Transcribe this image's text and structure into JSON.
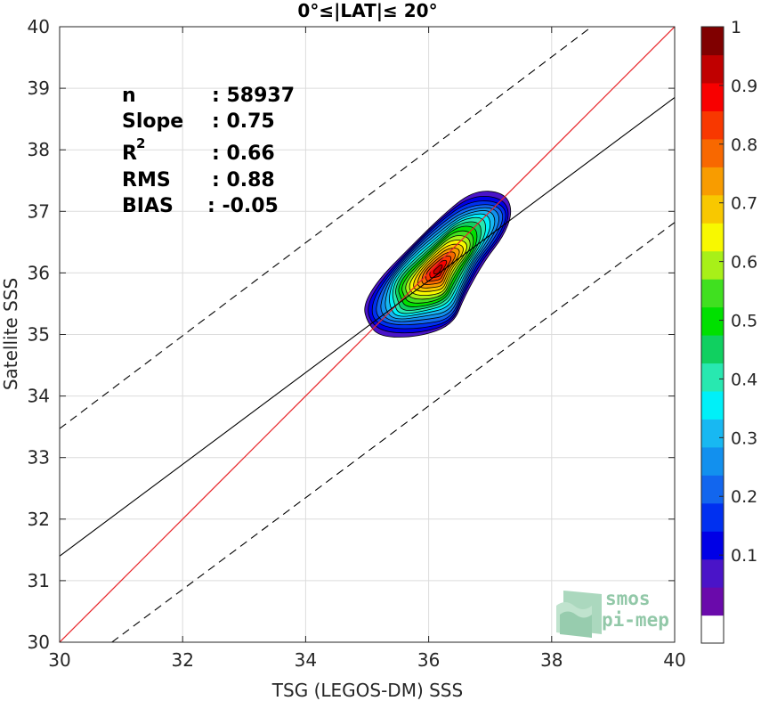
{
  "chart_data": {
    "type": "heatmap",
    "title": "0°≤|LAT|≤ 20°",
    "xlabel": "TSG (LEGOS-DM) SSS",
    "ylabel": "Satellite SSS",
    "xlim": [
      30,
      40
    ],
    "ylim": [
      30,
      40
    ],
    "xticks": [
      "30",
      "32",
      "34",
      "36",
      "38",
      "40"
    ],
    "yticks": [
      "30",
      "31",
      "32",
      "33",
      "34",
      "35",
      "36",
      "37",
      "38",
      "39",
      "40"
    ],
    "grid": true,
    "stats": [
      {
        "label": "n",
        "value": ": 58937"
      },
      {
        "label": "Slope",
        "value": ": 0.75"
      },
      {
        "label": "R",
        "sup": "2",
        "value": ": 0.66"
      },
      {
        "label": "RMS",
        "value": ": 0.88"
      },
      {
        "label": "BIAS",
        "value": ": -0.05"
      }
    ],
    "lines": {
      "one_to_one": {
        "x": [
          30,
          40
        ],
        "y": [
          30,
          40
        ],
        "color": "#e8262a"
      },
      "regression": {
        "x": [
          30,
          40
        ],
        "y": [
          31.4,
          38.85
        ],
        "color": "#000000"
      },
      "upper_bound": {
        "x": [
          30,
          38.65
        ],
        "y": [
          33.47,
          40
        ],
        "color": "#000000",
        "style": "dashed"
      },
      "lower_bound": {
        "x": [
          30.85,
          40
        ],
        "y": [
          30,
          36.82
        ],
        "color": "#000000",
        "style": "dashed"
      }
    },
    "density_peak": {
      "x": 36.15,
      "y": 36.05
    },
    "contour_levels": [
      0.05,
      0.1,
      0.15,
      0.2,
      0.25,
      0.3,
      0.35,
      0.4,
      0.45,
      0.5,
      0.55,
      0.6,
      0.65,
      0.7,
      0.75,
      0.8,
      0.85,
      0.9,
      0.95,
      1.0
    ],
    "colorbar": {
      "ticks": [
        "0.1",
        "0.2",
        "0.3",
        "0.4",
        "0.5",
        "0.6",
        "0.7",
        "0.8",
        "0.9",
        "1"
      ],
      "colors": [
        "#ffffff",
        "#6a0aab",
        "#4a14c8",
        "#0000e6",
        "#0030f0",
        "#1266ee",
        "#1290ee",
        "#18b8f2",
        "#00f0f8",
        "#28e8b0",
        "#10d060",
        "#00e000",
        "#40e020",
        "#a8f018",
        "#f8f800",
        "#f8c800",
        "#f89c00",
        "#f86800",
        "#f83800",
        "#f80000",
        "#c00000",
        "#800000"
      ]
    }
  },
  "logo": {
    "line1": "smos",
    "line2": "pi-mep"
  }
}
